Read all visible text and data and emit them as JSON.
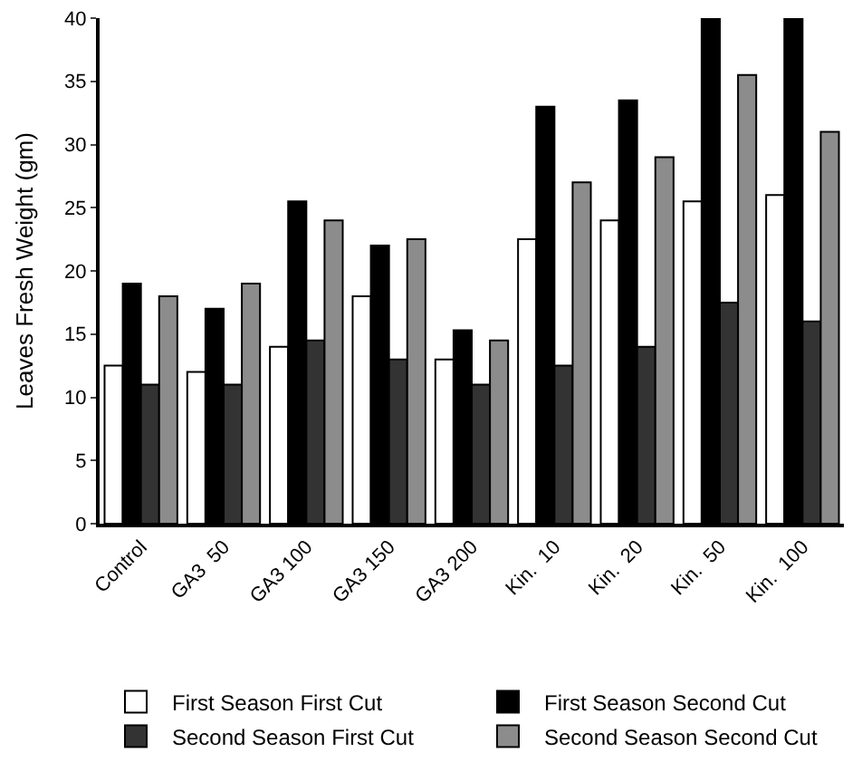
{
  "chart_data": {
    "type": "bar",
    "ylabel": "Leaves Fresh Weight (gm)",
    "categories": [
      "Control",
      "GA3  50",
      "GA3 100",
      "GA3 150",
      "GA3 200",
      "Kin.  10",
      "Kin.  20",
      "Kin.  50",
      "Kin.  100"
    ],
    "series": [
      {
        "name": "First Season First Cut",
        "color": "#ffffff",
        "values": [
          12.5,
          12,
          14,
          18,
          13,
          22.5,
          24,
          25.5,
          26
        ]
      },
      {
        "name": "First Season Second Cut",
        "color": "#000000",
        "values": [
          19,
          17,
          25.5,
          22,
          15.3,
          33,
          33.5,
          40,
          40
        ]
      },
      {
        "name": "Second Season First Cut",
        "color": "#333333",
        "values": [
          11,
          11,
          14.5,
          13,
          11,
          12.5,
          14,
          17.5,
          16
        ]
      },
      {
        "name": "Second Season Second Cut",
        "color": "#8c8c8c",
        "values": [
          18,
          19,
          24,
          22.5,
          14.5,
          27,
          29,
          35.5,
          31
        ]
      }
    ],
    "ylim": [
      0,
      40
    ],
    "yticks": [
      0,
      5,
      10,
      15,
      20,
      25,
      30,
      35,
      40
    ],
    "grid": false,
    "legend": "bottom"
  }
}
